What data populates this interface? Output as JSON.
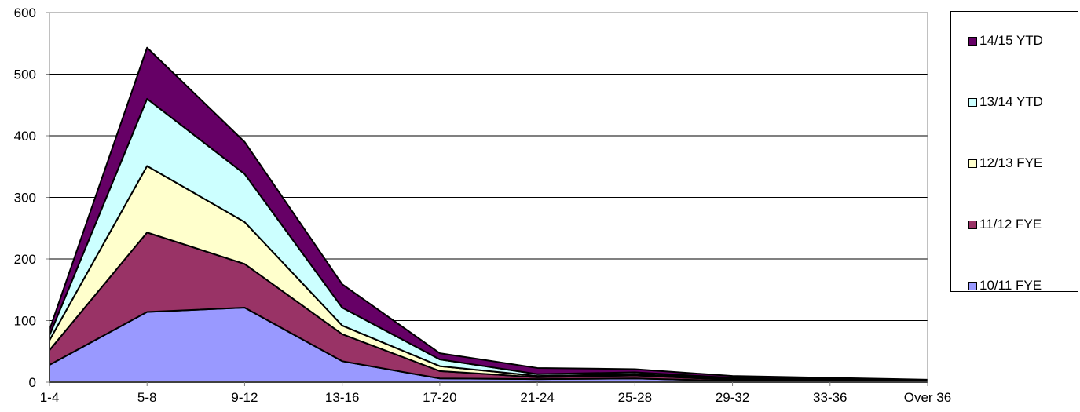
{
  "chart_data": {
    "type": "area",
    "stacked": true,
    "categories": [
      "1-4",
      "5-8",
      "9-12",
      "13-16",
      "17-20",
      "21-24",
      "25-28",
      "29-32",
      "33-36",
      "Over 36"
    ],
    "series": [
      {
        "name": "10/11 FYE",
        "color": "#9999ff",
        "values": [
          28,
          114,
          121,
          34,
          6,
          5,
          6,
          2,
          1,
          1
        ]
      },
      {
        "name": "11/12 FYE",
        "color": "#993366",
        "values": [
          24,
          129,
          71,
          44,
          12,
          3,
          5,
          2,
          2,
          1
        ]
      },
      {
        "name": "12/13 FYE",
        "color": "#ffffcc",
        "values": [
          16,
          108,
          68,
          14,
          8,
          2,
          2,
          1,
          1,
          0
        ]
      },
      {
        "name": "13/14 YTD",
        "color": "#ccffff",
        "values": [
          8,
          109,
          78,
          29,
          11,
          3,
          3,
          2,
          1,
          1
        ]
      },
      {
        "name": "14/15 YTD",
        "color": "#660066",
        "values": [
          9,
          83,
          52,
          38,
          10,
          10,
          5,
          3,
          2,
          1
        ]
      }
    ],
    "y_ticks": [
      "0",
      "100",
      "200",
      "300",
      "400",
      "500",
      "600"
    ],
    "ylim": [
      0,
      600
    ],
    "grid": "horizontal",
    "legend_position": "right"
  }
}
